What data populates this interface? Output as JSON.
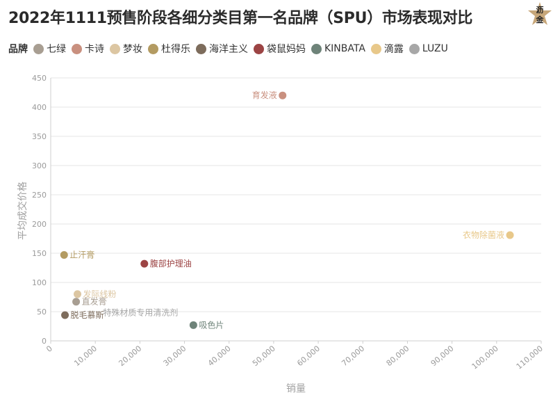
{
  "header": {
    "title": "2022年1111预售阶段各细分类目第一名品牌（SPU）市场表现对比",
    "badge_text_top": "沥",
    "badge_text_bottom": "金"
  },
  "legend": {
    "title": "品牌",
    "items": [
      {
        "name": "七绿",
        "color": "#a89e92"
      },
      {
        "name": "卡诗",
        "color": "#c9907f"
      },
      {
        "name": "梦妆",
        "color": "#dcc6a2"
      },
      {
        "name": "杜得乐",
        "color": "#b39b62"
      },
      {
        "name": "海洋主义",
        "color": "#7d6c5c"
      },
      {
        "name": "袋鼠妈妈",
        "color": "#9c4444"
      },
      {
        "name": "KINBATA",
        "color": "#6e8379"
      },
      {
        "name": "滴露",
        "color": "#e8c88a"
      },
      {
        "name": "LUZU",
        "color": "#a7a7a7"
      }
    ]
  },
  "chart_data": {
    "type": "scatter",
    "xlabel": "销量",
    "ylabel": "平均成交价格",
    "xlim": [
      0,
      110000
    ],
    "ylim": [
      0,
      450
    ],
    "xticks": [
      0,
      10000,
      20000,
      30000,
      40000,
      50000,
      60000,
      70000,
      80000,
      90000,
      100000,
      110000
    ],
    "xtick_labels": [
      "0",
      "10,000",
      "20,000",
      "30,000",
      "40,000",
      "50,000",
      "60,000",
      "70,000",
      "80,000",
      "90,000",
      "100,000",
      "110,000"
    ],
    "yticks": [
      0,
      50,
      100,
      150,
      200,
      250,
      300,
      350,
      400,
      450
    ],
    "ytick_labels": [
      "0",
      "50",
      "100",
      "150",
      "200",
      "250",
      "300",
      "350",
      "400",
      "450"
    ],
    "grid": true,
    "points": [
      {
        "label": "育发液",
        "brand": "卡诗",
        "x": 52000,
        "y": 420,
        "color": "#c9907f",
        "label_side": "left"
      },
      {
        "label": "衣物除菌液",
        "brand": "滴露",
        "x": 103000,
        "y": 181,
        "color": "#e8c88a",
        "label_side": "left"
      },
      {
        "label": "止汗膏",
        "brand": "杜得乐",
        "x": 3000,
        "y": 147,
        "color": "#b39b62",
        "label_side": "right"
      },
      {
        "label": "腹部护理油",
        "brand": "袋鼠妈妈",
        "x": 21000,
        "y": 132,
        "color": "#9c4444",
        "label_side": "right"
      },
      {
        "label": "发际线粉",
        "brand": "梦妆",
        "x": 6000,
        "y": 80,
        "color": "#dcc6a2",
        "label_side": "right"
      },
      {
        "label": "直发膏",
        "brand": "七绿",
        "x": 5700,
        "y": 67,
        "color": "#a89e92",
        "label_side": "right"
      },
      {
        "label": "脱毛慕斯",
        "brand": "海洋主义",
        "x": 3200,
        "y": 44,
        "color": "#7d6c5c",
        "label_side": "right"
      },
      {
        "label": "特殊材质专用清洗剂",
        "brand": "LUZU",
        "x": 10500,
        "y": 48,
        "color": "#a7a7a7",
        "label_side": "right",
        "hide_marker": true
      },
      {
        "label": "吸色片",
        "brand": "KINBATA",
        "x": 32000,
        "y": 27,
        "color": "#6e8379",
        "label_side": "right"
      }
    ]
  }
}
